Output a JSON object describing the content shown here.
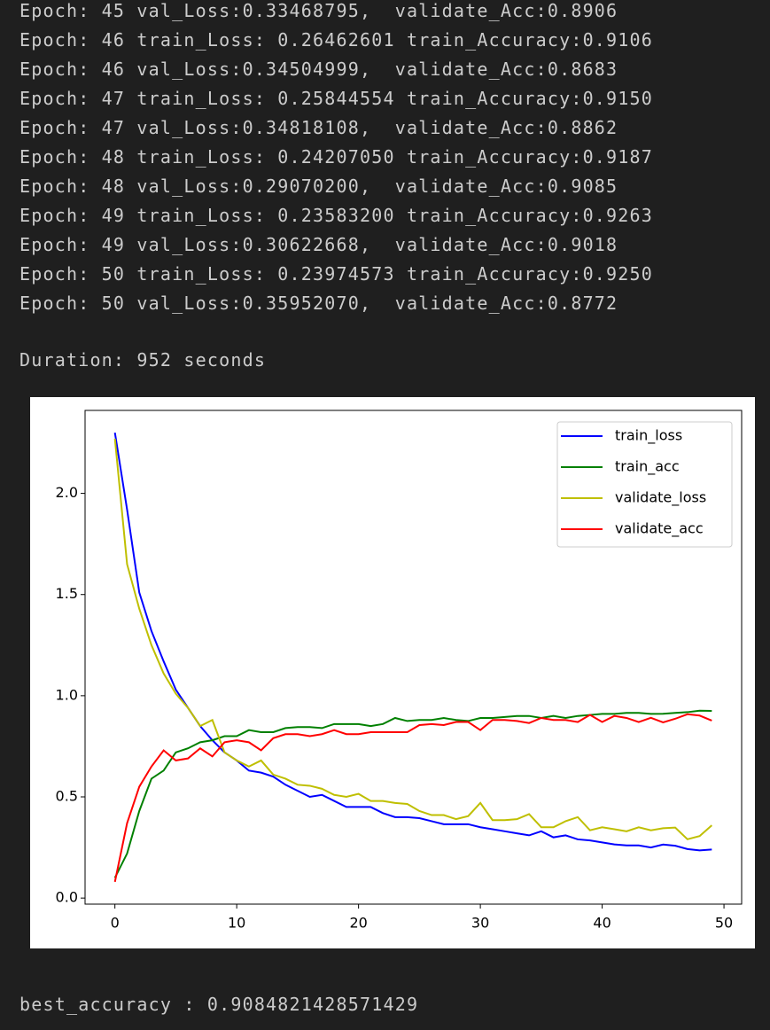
{
  "log": [
    "Epoch: 45 val_Loss:0.33468795,  validate_Acc:0.8906",
    "Epoch: 46 train_Loss: 0.26462601 train_Accuracy:0.9106",
    "Epoch: 46 val_Loss:0.34504999,  validate_Acc:0.8683",
    "Epoch: 47 train_Loss: 0.25844554 train_Accuracy:0.9150",
    "Epoch: 47 val_Loss:0.34818108,  validate_Acc:0.8862",
    "Epoch: 48 train_Loss: 0.24207050 train_Accuracy:0.9187",
    "Epoch: 48 val_Loss:0.29070200,  validate_Acc:0.9085",
    "Epoch: 49 train_Loss: 0.23583200 train_Accuracy:0.9263",
    "Epoch: 49 val_Loss:0.30622668,  validate_Acc:0.9018",
    "Epoch: 50 train_Loss: 0.23974573 train_Accuracy:0.9250",
    "Epoch: 50 val_Loss:0.35952070,  validate_Acc:0.8772"
  ],
  "duration": "Duration: 952 seconds",
  "chart_data": {
    "type": "line",
    "x": [
      0,
      1,
      2,
      3,
      4,
      5,
      6,
      7,
      8,
      9,
      10,
      11,
      12,
      13,
      14,
      15,
      16,
      17,
      18,
      19,
      20,
      21,
      22,
      23,
      24,
      25,
      26,
      27,
      28,
      29,
      30,
      31,
      32,
      33,
      34,
      35,
      36,
      37,
      38,
      39,
      40,
      41,
      42,
      43,
      44,
      45,
      46,
      47,
      48,
      49
    ],
    "series": [
      {
        "name": "train_loss",
        "color": "#0000ff",
        "values": [
          2.3,
          1.92,
          1.51,
          1.32,
          1.17,
          1.03,
          0.94,
          0.85,
          0.78,
          0.72,
          0.68,
          0.63,
          0.62,
          0.6,
          0.56,
          0.53,
          0.5,
          0.51,
          0.48,
          0.45,
          0.45,
          0.45,
          0.42,
          0.4,
          0.4,
          0.395,
          0.38,
          0.365,
          0.365,
          0.365,
          0.35,
          0.34,
          0.33,
          0.32,
          0.31,
          0.33,
          0.3,
          0.31,
          0.29,
          0.285,
          0.275,
          0.265,
          0.26,
          0.26,
          0.25,
          0.2646,
          0.2584,
          0.2421,
          0.2358,
          0.2397
        ]
      },
      {
        "name": "train_acc",
        "color": "#008000",
        "values": [
          0.1,
          0.22,
          0.43,
          0.59,
          0.63,
          0.72,
          0.74,
          0.77,
          0.78,
          0.8,
          0.8,
          0.83,
          0.82,
          0.82,
          0.84,
          0.845,
          0.845,
          0.84,
          0.86,
          0.86,
          0.86,
          0.85,
          0.86,
          0.89,
          0.875,
          0.88,
          0.88,
          0.89,
          0.88,
          0.875,
          0.89,
          0.89,
          0.895,
          0.9,
          0.9,
          0.89,
          0.9,
          0.89,
          0.9,
          0.905,
          0.91,
          0.91,
          0.915,
          0.915,
          0.91,
          0.9106,
          0.915,
          0.9187,
          0.9263,
          0.925
        ]
      },
      {
        "name": "validate_loss",
        "color": "#bfbf00",
        "values": [
          2.27,
          1.65,
          1.43,
          1.25,
          1.11,
          1.01,
          0.94,
          0.85,
          0.88,
          0.72,
          0.68,
          0.65,
          0.68,
          0.61,
          0.59,
          0.56,
          0.555,
          0.54,
          0.51,
          0.5,
          0.515,
          0.48,
          0.48,
          0.47,
          0.465,
          0.43,
          0.41,
          0.41,
          0.39,
          0.405,
          0.47,
          0.385,
          0.385,
          0.39,
          0.415,
          0.35,
          0.35,
          0.38,
          0.4,
          0.335,
          0.35,
          0.34,
          0.33,
          0.35,
          0.3347,
          0.345,
          0.3482,
          0.2907,
          0.3062,
          0.3595
        ]
      },
      {
        "name": "validate_acc",
        "color": "#ff0000",
        "values": [
          0.08,
          0.37,
          0.55,
          0.65,
          0.73,
          0.68,
          0.69,
          0.74,
          0.7,
          0.77,
          0.78,
          0.77,
          0.73,
          0.79,
          0.81,
          0.81,
          0.8,
          0.81,
          0.83,
          0.81,
          0.81,
          0.82,
          0.82,
          0.82,
          0.82,
          0.855,
          0.86,
          0.855,
          0.87,
          0.87,
          0.83,
          0.88,
          0.88,
          0.875,
          0.865,
          0.89,
          0.88,
          0.88,
          0.87,
          0.905,
          0.87,
          0.9,
          0.89,
          0.87,
          0.8906,
          0.8683,
          0.8862,
          0.9085,
          0.9018,
          0.8772
        ]
      }
    ],
    "xlim": [
      -2.45,
      51.45
    ],
    "xticks": [
      0,
      10,
      20,
      30,
      40,
      50
    ],
    "ylim": [
      -0.03,
      2.41
    ],
    "yticks": [
      {
        "value": 0,
        "label": "0.0"
      },
      0.5,
      {
        "value": 1,
        "label": "1.0"
      },
      1.5,
      {
        "value": 2,
        "label": "2.0"
      }
    ],
    "grid": false,
    "legend": "upper right"
  },
  "result": "best_accuracy : 0.9084821428571429"
}
